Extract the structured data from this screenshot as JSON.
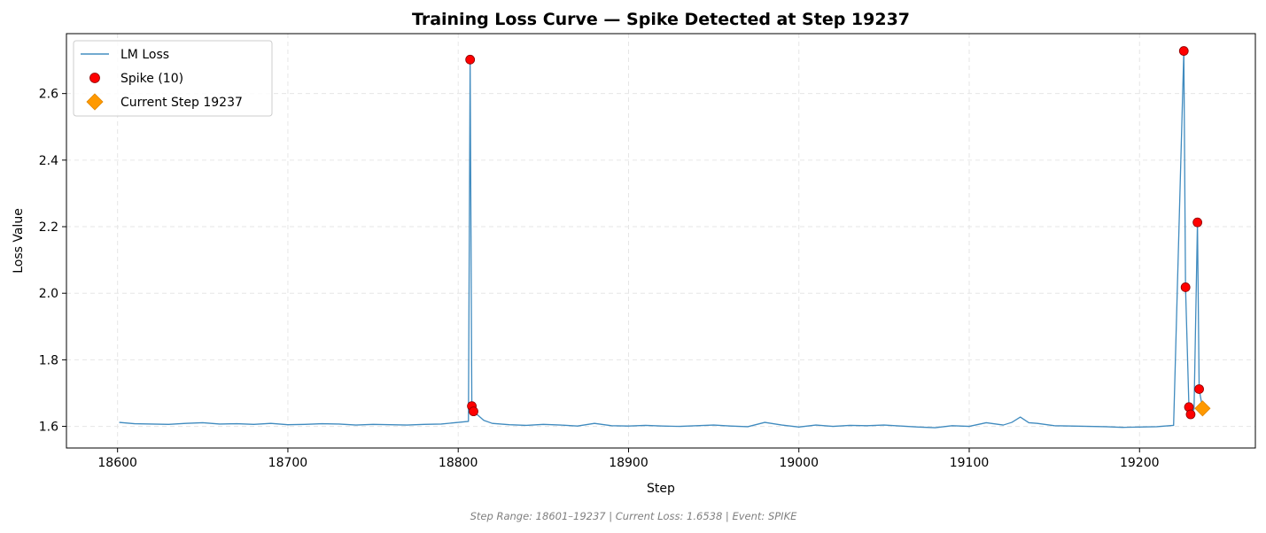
{
  "chart_data": {
    "type": "line",
    "title": "Training Loss Curve — Spike Detected at Step 19237",
    "xlabel": "Step",
    "ylabel": "Loss Value",
    "xlim": [
      18570,
      19268
    ],
    "ylim": [
      1.535,
      2.78
    ],
    "xticks": [
      18600,
      18700,
      18800,
      18900,
      19000,
      19100,
      19200
    ],
    "yticks": [
      1.6,
      1.8,
      2.0,
      2.2,
      2.4,
      2.6
    ],
    "grid": true,
    "legend_position": "top-left",
    "series": [
      {
        "name": "LM Loss",
        "kind": "line",
        "color": "#1f77b4",
        "x": [
          18601,
          18610,
          18620,
          18630,
          18640,
          18650,
          18660,
          18670,
          18680,
          18690,
          18700,
          18710,
          18720,
          18730,
          18740,
          18750,
          18760,
          18770,
          18780,
          18790,
          18800,
          18806,
          18807,
          18808,
          18809,
          18815,
          18820,
          18830,
          18840,
          18850,
          18860,
          18870,
          18880,
          18890,
          18900,
          18910,
          18920,
          18930,
          18940,
          18950,
          18960,
          18970,
          18980,
          18990,
          19000,
          19010,
          19020,
          19030,
          19040,
          19050,
          19060,
          19070,
          19080,
          19090,
          19100,
          19110,
          19120,
          19125,
          19130,
          19135,
          19140,
          19150,
          19160,
          19170,
          19180,
          19190,
          19200,
          19210,
          19220,
          19226,
          19227,
          19229,
          19230,
          19232,
          19234,
          19235,
          19237
        ],
        "y": [
          1.612,
          1.608,
          1.607,
          1.606,
          1.609,
          1.611,
          1.607,
          1.608,
          1.606,
          1.609,
          1.605,
          1.606,
          1.608,
          1.607,
          1.604,
          1.606,
          1.605,
          1.604,
          1.606,
          1.607,
          1.612,
          1.615,
          2.702,
          1.661,
          1.645,
          1.618,
          1.609,
          1.605,
          1.603,
          1.606,
          1.604,
          1.601,
          1.609,
          1.602,
          1.601,
          1.603,
          1.601,
          1.6,
          1.602,
          1.604,
          1.601,
          1.599,
          1.612,
          1.604,
          1.598,
          1.604,
          1.6,
          1.603,
          1.602,
          1.604,
          1.601,
          1.598,
          1.596,
          1.602,
          1.6,
          1.611,
          1.604,
          1.612,
          1.628,
          1.611,
          1.609,
          1.602,
          1.601,
          1.6,
          1.599,
          1.597,
          1.598,
          1.599,
          1.603,
          2.728,
          2.018,
          1.658,
          1.636,
          1.652,
          2.213,
          1.712,
          1.654
        ]
      },
      {
        "name": "Spike (10)",
        "kind": "scatter",
        "marker": "circle",
        "color": "#ff0000",
        "x": [
          18807,
          18808,
          18809,
          19226,
          19227,
          19229,
          19230,
          19234,
          19235
        ],
        "y": [
          2.702,
          1.661,
          1.645,
          2.728,
          2.018,
          1.658,
          1.636,
          2.213,
          1.712
        ]
      },
      {
        "name": "Current Step 19237",
        "kind": "scatter",
        "marker": "diamond",
        "color": "#ff9900",
        "x": [
          19237
        ],
        "y": [
          1.654
        ]
      }
    ],
    "footer": "Step Range: 18601–19237 | Current Loss: 1.6538 | Event: SPIKE"
  }
}
